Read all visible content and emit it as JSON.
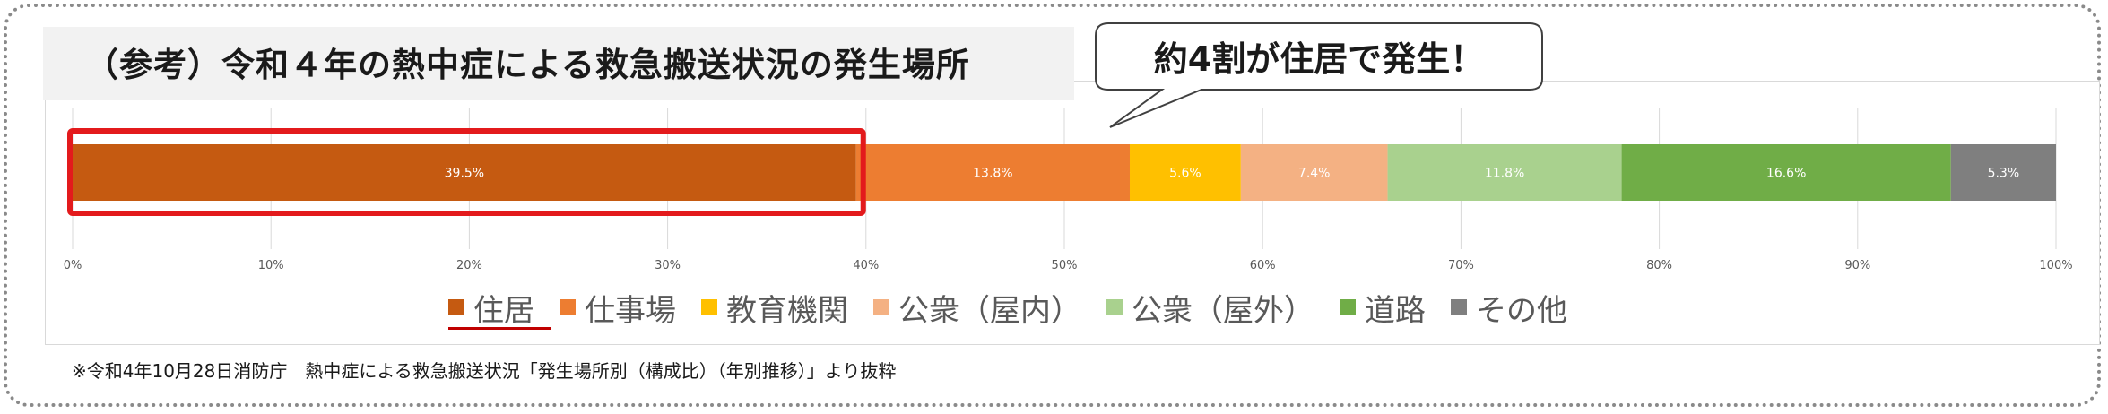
{
  "title": "（参考）令和４年の熱中症による救急搬送状況の発生場所",
  "callout": "約4割が住居で発生！",
  "source_note": "※令和4年10月28日消防庁　熱中症による救急搬送状況「発生場所別（構成比）（年別推移）」より抜粋",
  "highlight_color": "#e31a1c",
  "chart_data": {
    "type": "bar",
    "orientation": "horizontal-stacked-100",
    "series": [
      {
        "name": "住居",
        "value": 39.5,
        "label": "39.5%",
        "color": "#c55a11"
      },
      {
        "name": "仕事場",
        "value": 13.8,
        "label": "13.8%",
        "color": "#ed7d31"
      },
      {
        "name": "教育機関",
        "value": 5.6,
        "label": "5.6%",
        "color": "#ffc000"
      },
      {
        "name": "公衆（屋内）",
        "value": 7.4,
        "label": "7.4%",
        "color": "#f4b183"
      },
      {
        "name": "公衆（屋外）",
        "value": 11.8,
        "label": "11.8%",
        "color": "#a9d18e"
      },
      {
        "name": "道路",
        "value": 16.6,
        "label": "16.6%",
        "color": "#70ad47"
      },
      {
        "name": "その他",
        "value": 5.3,
        "label": "5.3%",
        "color": "#7f7f7f"
      }
    ],
    "xlim": [
      0,
      100
    ],
    "xticks": [
      0,
      10,
      20,
      30,
      40,
      50,
      60,
      70,
      80,
      90,
      100
    ],
    "xtick_labels": [
      "0%",
      "10%",
      "20%",
      "30%",
      "40%",
      "50%",
      "60%",
      "70%",
      "80%",
      "90%",
      "100%"
    ],
    "grid": true,
    "legend_position": "bottom",
    "highlighted_series": "住居"
  }
}
